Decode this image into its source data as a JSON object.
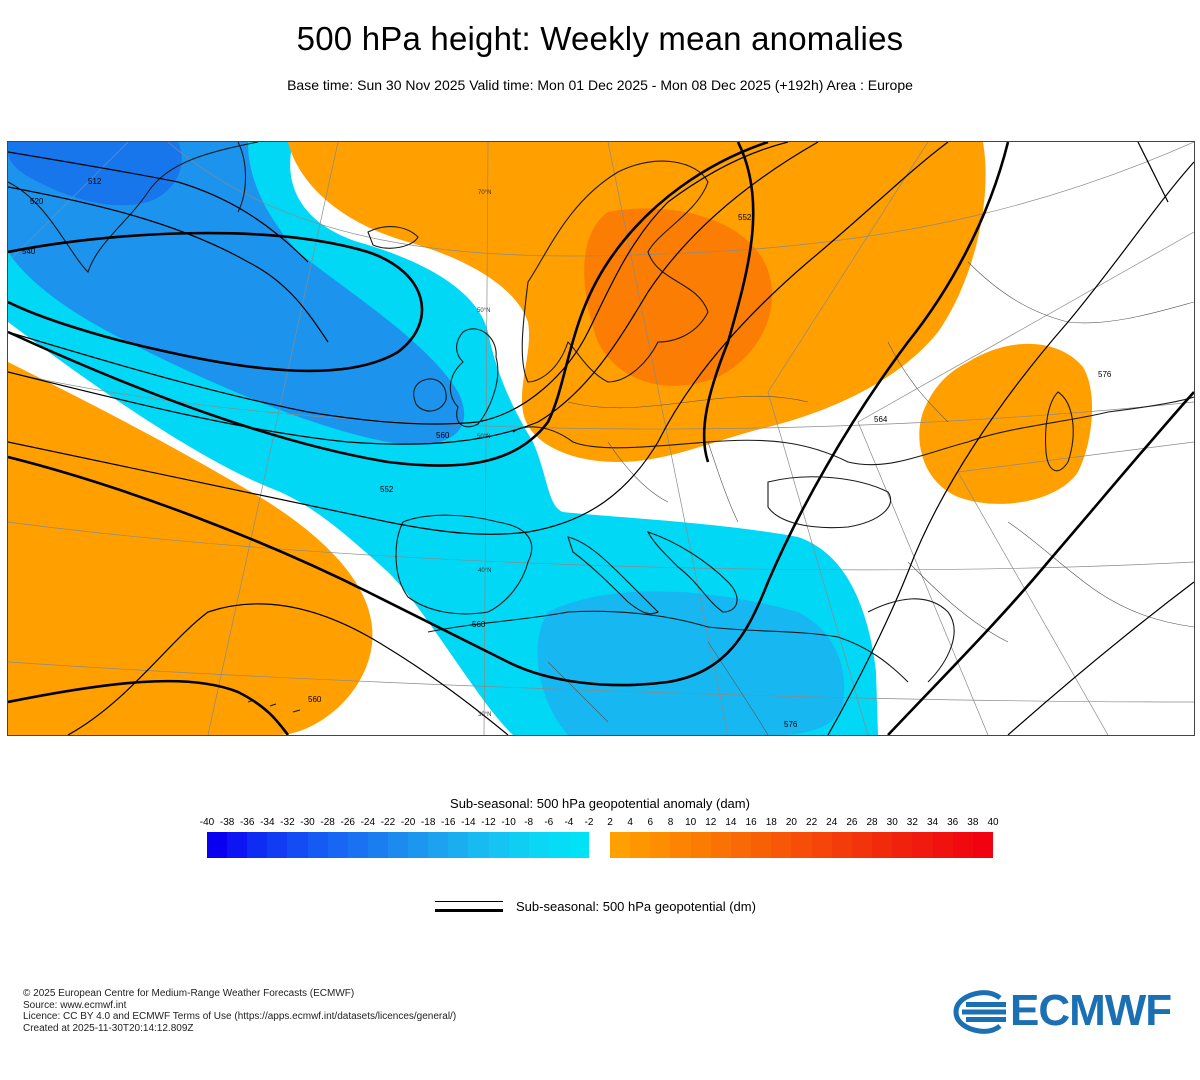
{
  "header": {
    "title": "500 hPa height: Weekly mean anomalies",
    "subtitle": "Base time: Sun 30 Nov 2025 Valid time: Mon 01 Dec 2025 - Mon 08 Dec 2025 (+192h) Area : Europe"
  },
  "map": {
    "area": "Europe",
    "contour_labels": [
      "512",
      "520",
      "540",
      "552",
      "552",
      "560",
      "560",
      "560",
      "564",
      "576",
      "576"
    ],
    "latitude_labels": [
      "70°N",
      "50°N",
      "50°N",
      "40°N",
      "30°N"
    ],
    "colors": {
      "negative_anomaly_strong": "#1874e8",
      "negative_anomaly_weak": "#00d8f6",
      "positive_anomaly_weak": "#ff9f00",
      "positive_anomaly_strong": "#f06a08",
      "contour": "#000000",
      "coastline": "#1a1a1a"
    }
  },
  "legend": {
    "anomaly_title": "Sub-seasonal: 500 hPa geopotential anomaly (dam)",
    "ticks": [
      "-40",
      "-38",
      "-36",
      "-34",
      "-32",
      "-30",
      "-28",
      "-26",
      "-24",
      "-22",
      "-20",
      "-18",
      "-16",
      "-14",
      "-12",
      "-10",
      "-8",
      "-6",
      "-4",
      "-2",
      "2",
      "4",
      "6",
      "8",
      "10",
      "12",
      "14",
      "16",
      "18",
      "20",
      "22",
      "24",
      "26",
      "28",
      "30",
      "32",
      "34",
      "36",
      "38",
      "40"
    ],
    "negative_colors": [
      "#0a00f0",
      "#0d16f2",
      "#0f2cf3",
      "#123cf4",
      "#144cf4",
      "#165af4",
      "#1866f3",
      "#1a72f2",
      "#1b7ef0",
      "#1c8aef",
      "#1c96ee",
      "#1ca2ef",
      "#1aaef0",
      "#17baf1",
      "#14c4f2",
      "#0fcef4",
      "#0ad6f5",
      "#05dcf6",
      "#02e2f7"
    ],
    "positive_colors": [
      "#ff9f00",
      "#fe9600",
      "#fd8d01",
      "#fc8402",
      "#fb7b03",
      "#fa7204",
      "#f96905",
      "#f86006",
      "#f75707",
      "#f64e08",
      "#f54509",
      "#f43c0a",
      "#f3330b",
      "#f22a0c",
      "#f1220d",
      "#f01a0e",
      "#f0120f",
      "#f00a10",
      "#f00210"
    ],
    "contour_title": "Sub-seasonal: 500 hPa geopotential (dm)"
  },
  "footer": {
    "copyright": "© 2025 European Centre for Medium-Range Weather Forecasts (ECMWF)",
    "source": "Source: www.ecmwf.int",
    "licence": "Licence: CC BY 4.0 and ECMWF Terms of Use (https://apps.ecmwf.int/datasets/licences/general/)",
    "created": "Created at 2025-11-30T20:14:12.809Z",
    "logo_text": "ECMWF"
  }
}
